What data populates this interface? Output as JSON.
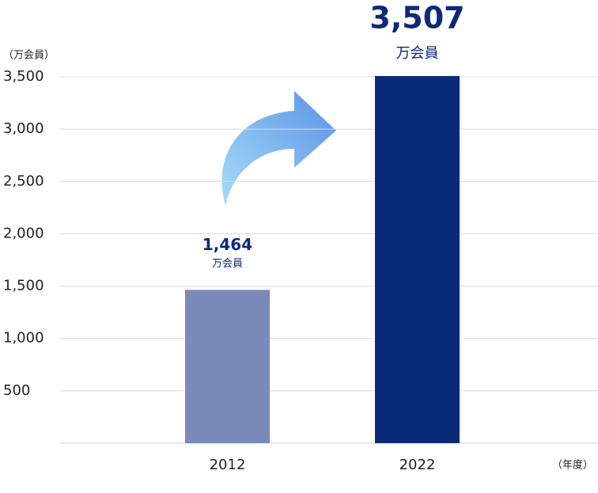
{
  "chart_data": {
    "type": "bar",
    "y_unit": "（万会員）",
    "x_unit": "（年度）",
    "categories": [
      "2012",
      "2022"
    ],
    "values": [
      1464,
      3507
    ],
    "value_labels": [
      "1,464",
      "3,507"
    ],
    "value_units": [
      "万会員",
      "万会員"
    ],
    "colors": [
      "#7a8ab8",
      "#0a2a78"
    ],
    "ylim": [
      0,
      3500
    ],
    "yticks": [
      {
        "value": 500,
        "label": "500"
      },
      {
        "value": 1000,
        "label": "1,000"
      },
      {
        "value": 1500,
        "label": "1,500"
      },
      {
        "value": 2000,
        "label": "2,000"
      },
      {
        "value": 2500,
        "label": "2,500"
      },
      {
        "value": 3000,
        "label": "3,000"
      },
      {
        "value": 3500,
        "label": "3,500"
      }
    ],
    "grid": true
  }
}
